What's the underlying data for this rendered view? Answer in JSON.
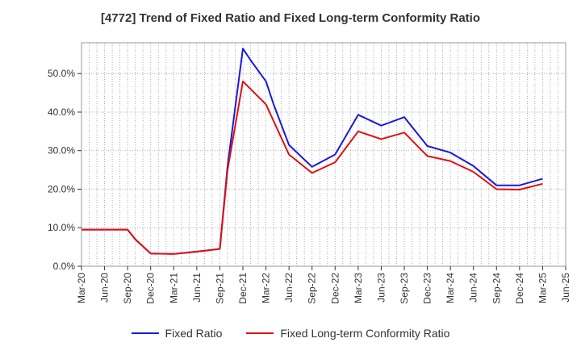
{
  "chart_data": {
    "type": "line",
    "title": "[4772]  Trend of Fixed Ratio and Fixed Long-term Conformity Ratio",
    "xlabel": "",
    "ylabel": "",
    "ylim": [
      0,
      58
    ],
    "yticks": [
      0,
      10,
      20,
      30,
      40,
      50
    ],
    "ytick_labels": [
      "0.0%",
      "10.0%",
      "20.0%",
      "30.0%",
      "40.0%",
      "50.0%"
    ],
    "x_tick_labels": [
      "Mar-20",
      "Jun-20",
      "Sep-20",
      "Dec-20",
      "Mar-21",
      "Jun-21",
      "Sep-21",
      "Dec-21",
      "Mar-22",
      "Jun-22",
      "Sep-22",
      "Dec-22",
      "Mar-23",
      "Jun-23",
      "Sep-23",
      "Dec-23",
      "Mar-24",
      "Jun-24",
      "Sep-24",
      "Dec-24",
      "Mar-25",
      "Jun-25"
    ],
    "grid": true,
    "legend_position": "bottom",
    "colors": {
      "fixed_ratio": "#1a1adb",
      "fixed_long_term": "#e01010"
    },
    "series": [
      {
        "name": "Fixed Ratio",
        "color": "#1a1adb",
        "x": [
          "Mar-20",
          "Jun-20",
          "Sep-20",
          "Oct-20",
          "Dec-20",
          "Mar-21",
          "Jun-21",
          "Sep-21",
          "Oct-21",
          "Dec-21",
          "Jan-22",
          "Mar-22",
          "Apr-22",
          "Jun-22",
          "Sep-22",
          "Dec-22",
          "Mar-23",
          "Jun-23",
          "Sep-23",
          "Dec-23",
          "Mar-24",
          "Jun-24",
          "Sep-24",
          "Dec-24",
          "Mar-25"
        ],
        "values": [
          9.5,
          9.5,
          9.5,
          7,
          3.3,
          3.2,
          3.8,
          4.5,
          26,
          56.5,
          53.5,
          48,
          42,
          31.5,
          25.8,
          29,
          39.3,
          36.5,
          38.7,
          31.2,
          29.5,
          26,
          21,
          21,
          22.7
        ]
      },
      {
        "name": "Fixed Long-term Conformity Ratio",
        "color": "#e01010",
        "x": [
          "Mar-20",
          "Jun-20",
          "Sep-20",
          "Oct-20",
          "Dec-20",
          "Mar-21",
          "Jun-21",
          "Sep-21",
          "Oct-21",
          "Dec-21",
          "Mar-22",
          "Jun-22",
          "Sep-22",
          "Dec-22",
          "Mar-23",
          "Jun-23",
          "Sep-23",
          "Dec-23",
          "Mar-24",
          "Jun-24",
          "Sep-24",
          "Dec-24",
          "Mar-25"
        ],
        "values": [
          9.5,
          9.5,
          9.5,
          7,
          3.3,
          3.2,
          3.8,
          4.5,
          25,
          48,
          42,
          29,
          24.2,
          27,
          35,
          33,
          34.7,
          28.6,
          27.3,
          24.5,
          20,
          19.9,
          21.4
        ]
      }
    ]
  }
}
